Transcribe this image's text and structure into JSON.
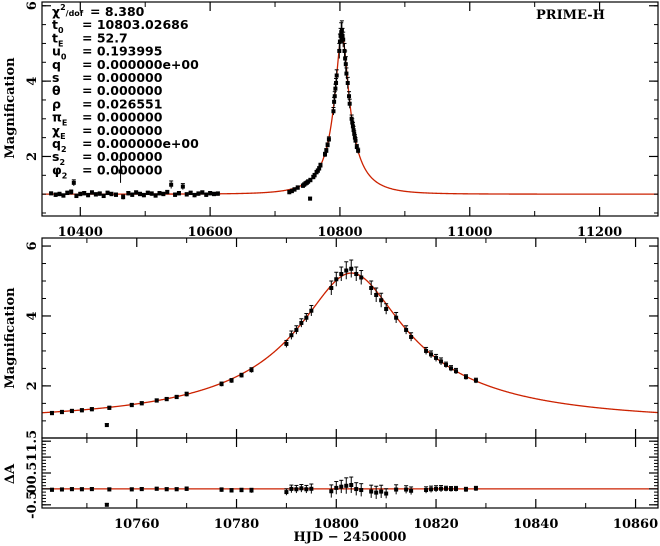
{
  "chart_data": [
    {
      "type": "scatter",
      "panel": "full-light-curve",
      "title": "PRIME-H",
      "xlabel": "",
      "ylabel": "Magnification",
      "xlim": [
        10341,
        11290
      ],
      "ylim": [
        0.42,
        6.1
      ],
      "xticks": [
        10400,
        10600,
        10800,
        11000,
        11200
      ],
      "yticks": [
        2,
        4,
        6
      ],
      "model_color": "#cc2200",
      "point_color": "#000000"
    },
    {
      "type": "scatter",
      "panel": "zoom-light-curve",
      "xlabel": "",
      "ylabel": "Magnification",
      "xlim": [
        10741,
        10864.5
      ],
      "ylim": [
        0.51,
        6.23
      ],
      "xticks": [
        10760,
        10780,
        10800,
        10820,
        10840,
        10860
      ],
      "yticks": [
        2,
        4,
        6
      ]
    },
    {
      "type": "scatter",
      "panel": "residuals",
      "xlabel": "HJD − 2450000",
      "ylabel": "ΔA",
      "xlim": [
        10741,
        10864.5
      ],
      "ylim": [
        -0.6,
        1.6
      ],
      "xticks": [
        10760,
        10780,
        10800,
        10820,
        10840,
        10860
      ],
      "yticks": [
        -0.5,
        0,
        0.5,
        1,
        1.5
      ]
    }
  ],
  "model": {
    "t0": 10803.02686,
    "tE": 52.7,
    "u0": 0.193995,
    "rho": 0.026551
  },
  "params": [
    {
      "sym": "χ",
      "sup": "2",
      "sub": "/dof",
      "value": "= 8.380"
    },
    {
      "sym": "t",
      "sub": "0",
      "value": "= 10803.02686"
    },
    {
      "sym": "t",
      "sub": "E",
      "value": "= 52.7"
    },
    {
      "sym": "u",
      "sub": "0",
      "value": "= 0.193995"
    },
    {
      "sym": "q",
      "sub": "",
      "value": "= 0.000000e+00"
    },
    {
      "sym": "s",
      "sub": "",
      "value": "= 0.000000"
    },
    {
      "sym": "θ",
      "sub": "",
      "value": "= 0.000000"
    },
    {
      "sym": "ρ",
      "sub": "",
      "value": "= 0.026551"
    },
    {
      "sym": "π",
      "sub": "E",
      "value": "= 0.000000"
    },
    {
      "sym": "χ",
      "sub": "E",
      "value": "= 0.000000"
    },
    {
      "sym": "q",
      "sub": "2",
      "value": "= 0.000000e+00"
    },
    {
      "sym": "s",
      "sub": "2",
      "value": "= 0.000000"
    },
    {
      "sym": "φ",
      "sub": "2",
      "value": "= 0.000000"
    }
  ],
  "points": [
    [
      10355,
      1.02,
      0.04
    ],
    [
      10362,
      0.98,
      0.05
    ],
    [
      10368,
      1.0,
      0.05
    ],
    [
      10374,
      0.96,
      0.05
    ],
    [
      10380,
      1.03,
      0.05
    ],
    [
      10386,
      1.05,
      0.06
    ],
    [
      10390,
      1.3,
      0.08
    ],
    [
      10394,
      0.95,
      0.05
    ],
    [
      10400,
      1.0,
      0.05
    ],
    [
      10406,
      1.02,
      0.05
    ],
    [
      10412,
      0.97,
      0.05
    ],
    [
      10418,
      1.04,
      0.05
    ],
    [
      10424,
      0.99,
      0.05
    ],
    [
      10430,
      1.01,
      0.05
    ],
    [
      10436,
      0.95,
      0.05
    ],
    [
      10442,
      1.03,
      0.05
    ],
    [
      10448,
      1.0,
      0.05
    ],
    [
      10455,
      0.98,
      0.05
    ],
    [
      10462,
      1.6,
      0.3
    ],
    [
      10466,
      0.92,
      0.06
    ],
    [
      10474,
      1.02,
      0.05
    ],
    [
      10480,
      0.98,
      0.05
    ],
    [
      10486,
      1.04,
      0.05
    ],
    [
      10492,
      1.0,
      0.05
    ],
    [
      10498,
      0.97,
      0.05
    ],
    [
      10504,
      1.03,
      0.05
    ],
    [
      10510,
      1.01,
      0.05
    ],
    [
      10516,
      0.96,
      0.05
    ],
    [
      10522,
      1.02,
      0.05
    ],
    [
      10528,
      1.0,
      0.05
    ],
    [
      10534,
      1.05,
      0.05
    ],
    [
      10540,
      1.25,
      0.1
    ],
    [
      10546,
      0.98,
      0.05
    ],
    [
      10552,
      1.02,
      0.05
    ],
    [
      10558,
      1.2,
      0.08
    ],
    [
      10564,
      0.99,
      0.05
    ],
    [
      10570,
      1.03,
      0.05
    ],
    [
      10576,
      0.97,
      0.05
    ],
    [
      10582,
      1.01,
      0.05
    ],
    [
      10588,
      1.04,
      0.05
    ],
    [
      10594,
      0.98,
      0.05
    ],
    [
      10600,
      1.02,
      0.05
    ],
    [
      10606,
      1.0,
      0.05
    ],
    [
      10612,
      1.01,
      0.05
    ],
    [
      10722,
      1.05,
      0.05
    ],
    [
      10726,
      1.08,
      0.05
    ],
    [
      10730,
      1.12,
      0.05
    ],
    [
      10735,
      1.17,
      0.05
    ],
    [
      10743,
      1.22,
      0.05
    ],
    [
      10745,
      1.25,
      0.05
    ],
    [
      10747,
      1.28,
      0.05
    ],
    [
      10749,
      1.3,
      0.05
    ],
    [
      10751,
      1.33,
      0.05
    ],
    [
      10754,
      0.88,
      0.04
    ],
    [
      10754.5,
      1.37,
      0.05
    ],
    [
      10759,
      1.45,
      0.05
    ],
    [
      10761,
      1.5,
      0.05
    ],
    [
      10764,
      1.58,
      0.05
    ],
    [
      10766,
      1.62,
      0.05
    ],
    [
      10768,
      1.68,
      0.05
    ],
    [
      10770,
      1.76,
      0.06
    ],
    [
      10777,
      2.05,
      0.06
    ],
    [
      10779,
      2.15,
      0.06
    ],
    [
      10781,
      2.3,
      0.06
    ],
    [
      10783,
      2.45,
      0.07
    ],
    [
      10790,
      3.2,
      0.1
    ],
    [
      10791,
      3.45,
      0.12
    ],
    [
      10792,
      3.6,
      0.12
    ],
    [
      10793,
      3.8,
      0.12
    ],
    [
      10794,
      3.95,
      0.12
    ],
    [
      10795,
      4.15,
      0.15
    ],
    [
      10799,
      4.8,
      0.2
    ],
    [
      10800,
      5.05,
      0.2
    ],
    [
      10801,
      5.2,
      0.2
    ],
    [
      10802,
      5.3,
      0.25
    ],
    [
      10803,
      5.35,
      0.25
    ],
    [
      10804,
      5.2,
      0.2
    ],
    [
      10805,
      5.1,
      0.2
    ],
    [
      10807,
      4.8,
      0.2
    ],
    [
      10808,
      4.6,
      0.2
    ],
    [
      10809,
      4.45,
      0.2
    ],
    [
      10810,
      4.2,
      0.15
    ],
    [
      10812,
      3.95,
      0.15
    ],
    [
      10814,
      3.6,
      0.12
    ],
    [
      10815,
      3.4,
      0.12
    ],
    [
      10818,
      3.0,
      0.1
    ],
    [
      10819,
      2.9,
      0.1
    ],
    [
      10820,
      2.8,
      0.1
    ],
    [
      10821,
      2.7,
      0.1
    ],
    [
      10822,
      2.6,
      0.08
    ],
    [
      10823,
      2.5,
      0.08
    ],
    [
      10824,
      2.42,
      0.08
    ],
    [
      10826,
      2.25,
      0.07
    ],
    [
      10828,
      2.15,
      0.07
    ]
  ]
}
